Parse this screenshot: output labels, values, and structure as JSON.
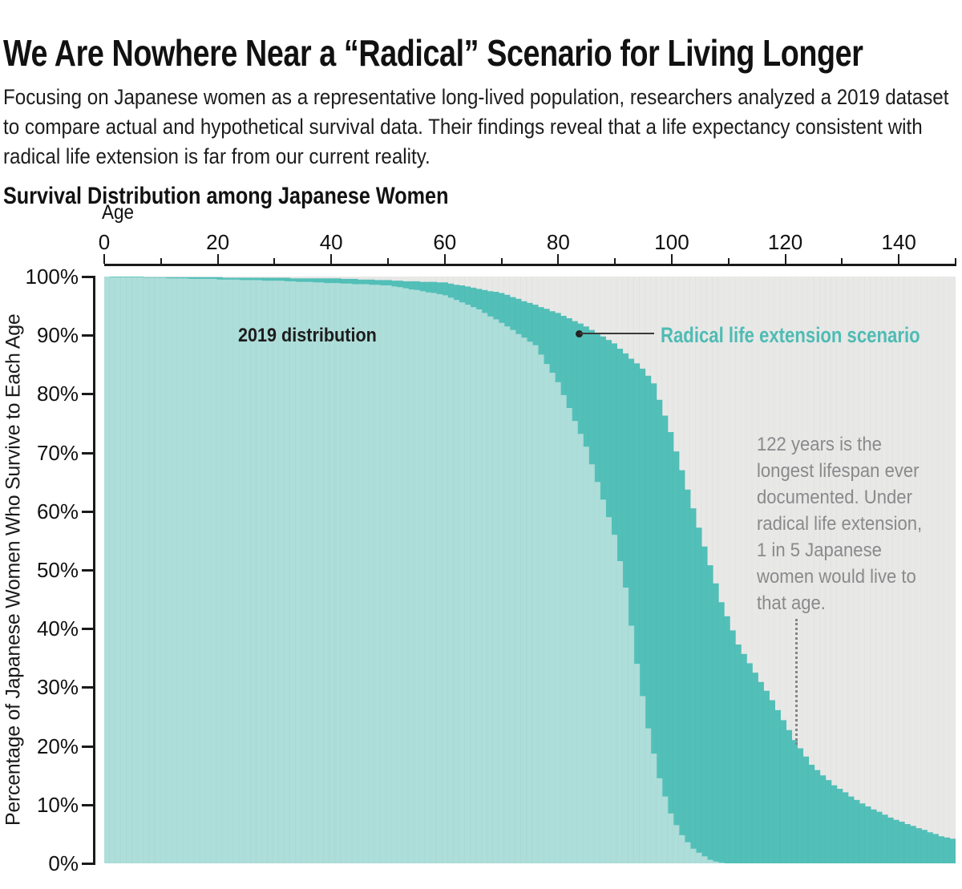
{
  "header": {
    "title": "We Are Nowhere Near a “Radical” Scenario for Living Longer",
    "subtitle": "Focusing on Japanese women as a representative long-lived population, researchers analyzed a 2019 dataset to compare actual and hypothetical survival data. Their findings reveal that a life expectancy consistent with radical life extension is far from our current reality."
  },
  "chart": {
    "title": "Survival Distribution among Japanese Women",
    "x_axis": {
      "label": "Age",
      "min": 0,
      "max": 150,
      "labeled_ticks": [
        0,
        20,
        40,
        60,
        80,
        100,
        120,
        140
      ],
      "minor_tick_step": 10
    },
    "y_axis": {
      "label": "Percentage of Japanese Women Who Survive to Each Age",
      "tick_labels": [
        "100%",
        "90%",
        "80%",
        "70%",
        "60%",
        "50%",
        "40%",
        "30%",
        "20%",
        "10%",
        "0%"
      ]
    },
    "annotation": {
      "text": "122 years is the\nlongest lifespan ever\ndocumented. Under\nradical life extension,\n1 in 5 Japanese\nwomen would live to\nthat age.",
      "pointer_age": 122,
      "pointer_pct": 20
    },
    "colors": {
      "area_2019": "#aededa",
      "area_radical": "#52c0b8",
      "plot_background": "#e8e8e7",
      "legend_radical_text": "#4dbcb4",
      "annotation_text": "#8a8a8c",
      "axis": "#1a1a1a"
    }
  },
  "chart_data": {
    "type": "area",
    "title": "Survival Distribution among Japanese Women",
    "xlabel": "Age",
    "ylabel": "Percentage of Japanese Women Who Survive to Each Age",
    "x_range": [
      0,
      150
    ],
    "ylim_pct": [
      0,
      100
    ],
    "x_step_years": 1,
    "grid": false,
    "series": [
      {
        "name": "2019 distribution",
        "color": "#aededa",
        "values": [
          100,
          99.9,
          99.9,
          99.9,
          99.9,
          99.9,
          99.9,
          99.8,
          99.8,
          99.8,
          99.8,
          99.7,
          99.7,
          99.7,
          99.7,
          99.6,
          99.6,
          99.6,
          99.6,
          99.6,
          99.5,
          99.5,
          99.5,
          99.5,
          99.4,
          99.4,
          99.4,
          99.4,
          99.3,
          99.3,
          99.3,
          99.3,
          99.2,
          99.2,
          99.1,
          99.1,
          99.1,
          99.0,
          99.0,
          98.9,
          98.9,
          98.9,
          98.8,
          98.8,
          98.7,
          98.7,
          98.7,
          98.6,
          98.6,
          98.5,
          98.5,
          98.3,
          98.2,
          98.0,
          97.8,
          97.7,
          97.5,
          97.3,
          97.2,
          97.0,
          96.8,
          96.4,
          96.0,
          95.6,
          95.2,
          94.8,
          94.4,
          93.8,
          93.2,
          92.7,
          92.1,
          91.5,
          90.9,
          90.2,
          89.6,
          88.9,
          88.3,
          86.7,
          85.1,
          83.6,
          82.0,
          79.8,
          77.6,
          75.4,
          73.2,
          71.0,
          68.0,
          65.0,
          62.0,
          59.0,
          56.0,
          51.5,
          47.0,
          40.5,
          34.0,
          28.5,
          23.0,
          18.7,
          14.5,
          11.4,
          8.5,
          6.5,
          4.8,
          3.6,
          2.5,
          1.8,
          1.2,
          0.6,
          0.3,
          0.1,
          0,
          0,
          0,
          0,
          0,
          0,
          0,
          0,
          0,
          0,
          0,
          0,
          0,
          0,
          0,
          0,
          0,
          0,
          0,
          0,
          0,
          0,
          0,
          0,
          0,
          0,
          0,
          0,
          0,
          0,
          0,
          0,
          0,
          0,
          0,
          0,
          0,
          0,
          0,
          0,
          0
        ]
      },
      {
        "name": "Radical life extension scenario",
        "color": "#52c0b8",
        "values": [
          100,
          100,
          100,
          100,
          100,
          100,
          100,
          99.9,
          99.9,
          99.9,
          99.9,
          99.9,
          99.9,
          99.9,
          99.9,
          99.9,
          99.9,
          99.9,
          99.9,
          99.9,
          99.9,
          99.8,
          99.8,
          99.8,
          99.8,
          99.8,
          99.8,
          99.8,
          99.8,
          99.8,
          99.8,
          99.8,
          99.8,
          99.7,
          99.7,
          99.7,
          99.7,
          99.7,
          99.7,
          99.7,
          99.7,
          99.7,
          99.6,
          99.6,
          99.6,
          99.5,
          99.5,
          99.5,
          99.4,
          99.4,
          99.4,
          99.3,
          99.3,
          99.2,
          99.2,
          99.2,
          99.1,
          99.1,
          99.1,
          99.0,
          99.0,
          98.8,
          98.6,
          98.5,
          98.3,
          98.1,
          97.9,
          97.7,
          97.5,
          97.4,
          97.2,
          96.9,
          96.5,
          96.2,
          95.8,
          95.5,
          95.2,
          94.8,
          94.5,
          94.1,
          93.8,
          93.3,
          92.9,
          92.4,
          92.0,
          91.5,
          90.9,
          90.3,
          89.8,
          89.2,
          88.6,
          87.7,
          86.9,
          86.0,
          85.2,
          84.3,
          83.1,
          81.8,
          79.0,
          76.3,
          73.5,
          70.2,
          67.0,
          63.7,
          60.5,
          57.2,
          54.0,
          50.8,
          47.7,
          44.5,
          42.1,
          39.7,
          37.3,
          35.7,
          34.1,
          32.5,
          30.9,
          29.4,
          27.8,
          26.1,
          24.4,
          22.7,
          21.0,
          19.6,
          18.2,
          16.8,
          15.9,
          15.0,
          14.2,
          13.3,
          12.7,
          12.1,
          11.4,
          10.8,
          10.2,
          9.7,
          9.2,
          8.8,
          8.3,
          7.8,
          7.4,
          7.1,
          6.7,
          6.4,
          6.0,
          5.7,
          5.3,
          5.0,
          4.6,
          4.4,
          4.2
        ]
      }
    ]
  }
}
